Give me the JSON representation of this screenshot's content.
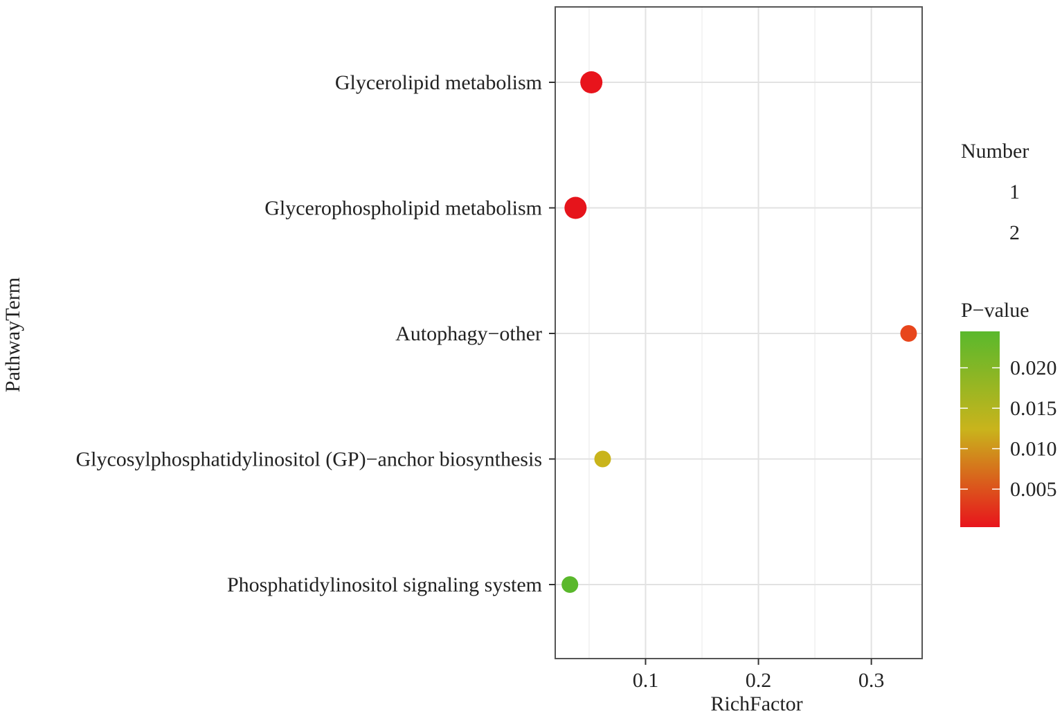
{
  "chart_data": {
    "type": "scatter",
    "title": "",
    "xlabel": "RichFactor",
    "ylabel": "PathwayTerm",
    "xlim": [
      0.02,
      0.345
    ],
    "xticks": [
      0.1,
      0.2,
      0.3
    ],
    "xtick_labels": [
      "0.1",
      "0.2",
      "0.3"
    ],
    "grid": true,
    "categories": [
      "Glycerolipid metabolism",
      "Glycerophospholipid metabolism",
      "Autophagy−other",
      "Glycosylphosphatidylinositol (GP)−anchor biosynthesis",
      "Phosphatidylinositol signaling system"
    ],
    "points": [
      {
        "category": "Glycerolipid metabolism",
        "x": 0.052,
        "number": 2,
        "pvalue": 0.0003,
        "color": "#e8141c"
      },
      {
        "category": "Glycerophospholipid metabolism",
        "x": 0.038,
        "number": 2,
        "pvalue": 0.0005,
        "color": "#e6141b"
      },
      {
        "category": "Autophagy−other",
        "x": 0.333,
        "number": 1,
        "pvalue": 0.003,
        "color": "#e8461c"
      },
      {
        "category": "Glycosylphosphatidylinositol (GP)−anchor biosynthesis",
        "x": 0.062,
        "number": 1,
        "pvalue": 0.013,
        "color": "#c9b41c"
      },
      {
        "category": "Phosphatidylinositol signaling system",
        "x": 0.033,
        "number": 1,
        "pvalue": 0.022,
        "color": "#5ab82c"
      }
    ],
    "legend": {
      "placement": "right",
      "size": {
        "title": "Number",
        "labels": [
          "1",
          "2"
        ]
      },
      "color": {
        "title": "P−value",
        "range": [
          0.0003,
          0.0245
        ],
        "ticks": [
          0.005,
          0.01,
          0.015,
          0.02
        ],
        "tick_labels": [
          "0.005",
          "0.010",
          "0.015",
          "0.020"
        ],
        "low_color": "#e8141c",
        "mid_color": "#c9b41c",
        "high_color": "#5ab82c"
      }
    }
  }
}
